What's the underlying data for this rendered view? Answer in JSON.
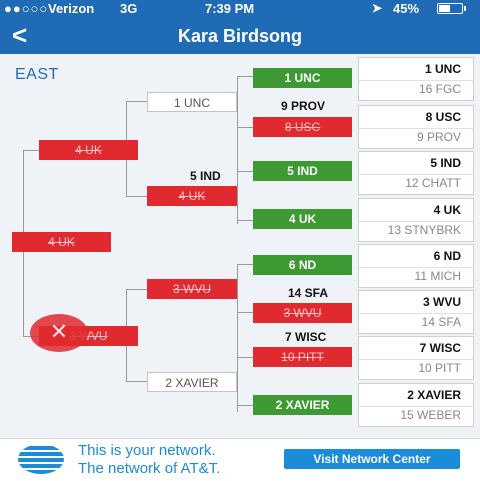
{
  "status_bar": {
    "signal_dots": "●●○○○",
    "carrier": "Verizon",
    "network": "3G",
    "time": "7:39 PM",
    "battery_pct": "45%",
    "battery_level": 0.45
  },
  "nav": {
    "back_label": "<",
    "title": "Kara Birdsong"
  },
  "region": "EAST",
  "teams": [
    {
      "top": "1 UNC",
      "bottom": "16 FGC"
    },
    {
      "top": "8 USC",
      "bottom": "9 PROV"
    },
    {
      "top": "5 IND",
      "bottom": "12 CHATT"
    },
    {
      "top": "4 UK",
      "bottom": "13 STNYBRK"
    },
    {
      "top": "6 ND",
      "bottom": "11 MICH"
    },
    {
      "top": "3 WVU",
      "bottom": "14 SFA"
    },
    {
      "top": "7 WISC",
      "bottom": "10 PITT"
    },
    {
      "top": "2 XAVIER",
      "bottom": "15 WEBER"
    }
  ],
  "round1": [
    "1 UNC",
    "8 USC",
    "5 IND",
    "4 UK",
    "6 ND",
    "3 WVU",
    "10 PITT",
    "2 XAVIER"
  ],
  "round1_labels": {
    "prov": "9 PROV",
    "sfa": "14 SFA",
    "wisc": "7 WISC"
  },
  "round2": [
    "1 UNC",
    "4 UK",
    "3 WVU",
    "2 XAVIER"
  ],
  "round2_labels": {
    "ind": "5 IND"
  },
  "round3": [
    "4 UK",
    "3 WVU"
  ],
  "round4": "4 UK",
  "ad": {
    "line1": "This is your network.",
    "line2": "The network of AT&T.",
    "button": "Visit Network Center"
  }
}
